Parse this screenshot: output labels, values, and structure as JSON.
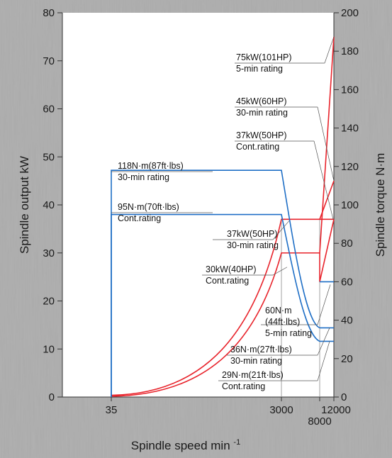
{
  "chart_data": {
    "type": "line",
    "xlabel": "Spindle speed min",
    "xlabel_superscript": "-1",
    "ylabel_left": "Spindle output kW",
    "ylabel_right": "Spindle torque N·m",
    "y_left_range": [
      0,
      80
    ],
    "y_left_ticks": [
      "0",
      "10",
      "20",
      "30",
      "40",
      "50",
      "60",
      "70",
      "80"
    ],
    "y_right_range": [
      0,
      200
    ],
    "y_right_ticks": [
      "0",
      "20",
      "40",
      "60",
      "80",
      "100",
      "120",
      "140",
      "160",
      "180",
      "200"
    ],
    "x_ticks": [
      "35",
      "3000",
      "8000",
      "12000"
    ],
    "grid": false,
    "series": [
      {
        "axis": "left",
        "color": "#e8232b",
        "x": [
          35,
          3000,
          8000,
          12000
        ],
        "y": [
          0,
          30,
          30,
          75
        ]
      },
      {
        "axis": "left",
        "color": "#e8232b",
        "x": [
          35,
          3000,
          8000,
          12000
        ],
        "y": [
          0,
          37,
          37,
          45
        ]
      },
      {
        "axis": "left",
        "color": "#e8232b",
        "x": [
          35,
          3000,
          8000,
          12000
        ],
        "y": [
          0,
          37,
          37,
          37
        ]
      },
      {
        "axis": "right",
        "color": "#1f6fc6",
        "x": [
          35,
          3000,
          8000,
          12000
        ],
        "y": [
          118,
          118,
          36,
          36
        ]
      },
      {
        "axis": "right",
        "color": "#1f6fc6",
        "x": [
          35,
          3000,
          8000,
          12000
        ],
        "y": [
          95,
          95,
          29,
          29
        ]
      },
      {
        "axis": "right",
        "color": "#1f6fc6",
        "x": [
          8000,
          12000
        ],
        "y": [
          60,
          60
        ]
      }
    ],
    "annotations": [
      {
        "line1": "75kW(101HP)",
        "line2": "5-min rating"
      },
      {
        "line1": "45kW(60HP)",
        "line2": "30-min rating"
      },
      {
        "line1": "37kW(50HP)",
        "line2": "Cont.rating"
      },
      {
        "line1": "118N·m(87ft·lbs)",
        "line2": "30-min rating"
      },
      {
        "line1": "95N·m(70ft·lbs)",
        "line2": "Cont.rating"
      },
      {
        "line1": "37kW(50HP)",
        "line2": "30-min rating"
      },
      {
        "line1": "30kW(40HP)",
        "line2": "Cont.rating"
      },
      {
        "line1": "60N·m",
        "line2": "(44ft·lbs)",
        "line3": "5-min rating"
      },
      {
        "line1": "36N·m(27ft·lbs)",
        "line2": "30-min rating"
      },
      {
        "line1": "29N·m(21ft·lbs)",
        "line2": "Cont.rating"
      }
    ]
  }
}
